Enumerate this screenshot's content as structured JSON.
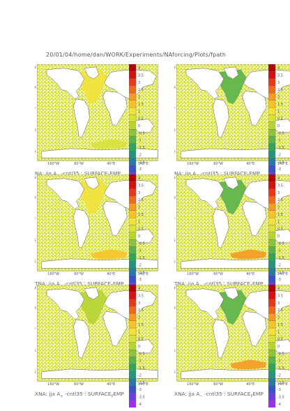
{
  "header": {
    "path": "20/01/04/home/dan/WORK/Experiments/NAforcing/Plots/fpath"
  },
  "colorbar": {
    "ticks": [
      "4",
      "3.5",
      "3",
      "2.5",
      "2",
      "1.5",
      "1",
      "0.5",
      "0",
      "-0.5",
      "-1",
      "-1.5",
      "-2",
      "-2.5",
      "-3",
      "-3.5",
      "-4"
    ],
    "colors": [
      "#b00000",
      "#d41010",
      "#e53a1a",
      "#f06a1e",
      "#f59a22",
      "#f8c22a",
      "#f3e23a",
      "#d8e23a",
      "#b6d434",
      "#8cc23e",
      "#5ab24a",
      "#33a35a",
      "#27947a",
      "#2a78a0",
      "#3a52c8",
      "#6a3ee0",
      "#9a30e8"
    ]
  },
  "axes": {
    "lat_labels": [
      "80°N",
      "40°N",
      "0°",
      "40°S",
      "80°S"
    ],
    "lon_labels": [
      "160°W",
      "60°W",
      "40°E",
      "140°E"
    ]
  },
  "chart_data": [
    {
      "type": "heatmap",
      "panel": "NA A+",
      "title": "NA: jja A+  -cntl35 : SURFACE_EMP",
      "title_parts": {
        "prefix": "NA: jja A",
        "sign": "+",
        "suffix": " -cntl35 : SURFACE",
        "sub": "F",
        "var": "EMP"
      },
      "colorbar_range": [
        -4,
        4
      ],
      "ocean_level": 0.4,
      "anomaly_regions": [
        {
          "name": "North Atlantic",
          "level": 1.2
        },
        {
          "name": "Southern Ocean",
          "level": 0.5
        }
      ]
    },
    {
      "type": "heatmap",
      "panel": "NA A-",
      "title": "NA: jja A-  -cntl35 : SURFACE_EMP",
      "title_parts": {
        "prefix": "NA: jja A",
        "sign": "−",
        "suffix": " -cntl35 : SURFACE",
        "sub": "F",
        "var": "EMP"
      },
      "colorbar_range": [
        -4,
        4
      ],
      "ocean_level": 0.4,
      "anomaly_regions": [
        {
          "name": "North Atlantic",
          "level": -1.0
        }
      ]
    },
    {
      "type": "heatmap",
      "panel": "TNA A+",
      "title": "TNA: jja A+  -cntl35 : SURFACE_EMP",
      "title_parts": {
        "prefix": "TNA: jja A",
        "sign": "+",
        "suffix": " -cntl35 : SURFACE",
        "sub": "F",
        "var": "EMP"
      },
      "colorbar_range": [
        -4,
        4
      ],
      "ocean_level": 0.4,
      "anomaly_regions": [
        {
          "name": "North Atlantic",
          "level": 0.8
        },
        {
          "name": "Southern Ocean",
          "level": 1.5
        }
      ]
    },
    {
      "type": "heatmap",
      "panel": "TNA A-",
      "title": "TNA: jja A-  -cntl35 : SURFACE_EMP",
      "title_parts": {
        "prefix": "TNA: jja A",
        "sign": "−",
        "suffix": " -cntl35 : SURFACE",
        "sub": "F",
        "var": "EMP"
      },
      "colorbar_range": [
        -4,
        4
      ],
      "ocean_level": 0.4,
      "anomaly_regions": [
        {
          "name": "North Atlantic",
          "level": -1.0
        },
        {
          "name": "Southern Ocean",
          "level": 2.0
        }
      ]
    },
    {
      "type": "heatmap",
      "panel": "XNA A+",
      "title": "XNA: jja A+  -cntl35 : SURFACE_EMP",
      "title_parts": {
        "prefix": "XNA: jja A",
        "sign": "+",
        "suffix": " -cntl35 : SURFACE",
        "sub": "F",
        "var": "EMP"
      },
      "colorbar_range": [
        -4,
        4
      ],
      "ocean_level": 0.4,
      "anomaly_regions": [
        {
          "name": "North Atlantic",
          "level": 0.2
        }
      ]
    },
    {
      "type": "heatmap",
      "panel": "XNA A-",
      "title": "XNA: jja A-  -cntl35 : SURFACE_EMP",
      "title_parts": {
        "prefix": "XNA: jja A",
        "sign": "−",
        "suffix": " -cntl35 : SURFACE",
        "sub": "F",
        "var": "EMP"
      },
      "colorbar_range": [
        -4,
        4
      ],
      "ocean_level": 0.4,
      "anomaly_regions": [
        {
          "name": "North Atlantic",
          "level": -1.0
        },
        {
          "name": "Southern Ocean",
          "level": 2.0
        }
      ]
    }
  ]
}
